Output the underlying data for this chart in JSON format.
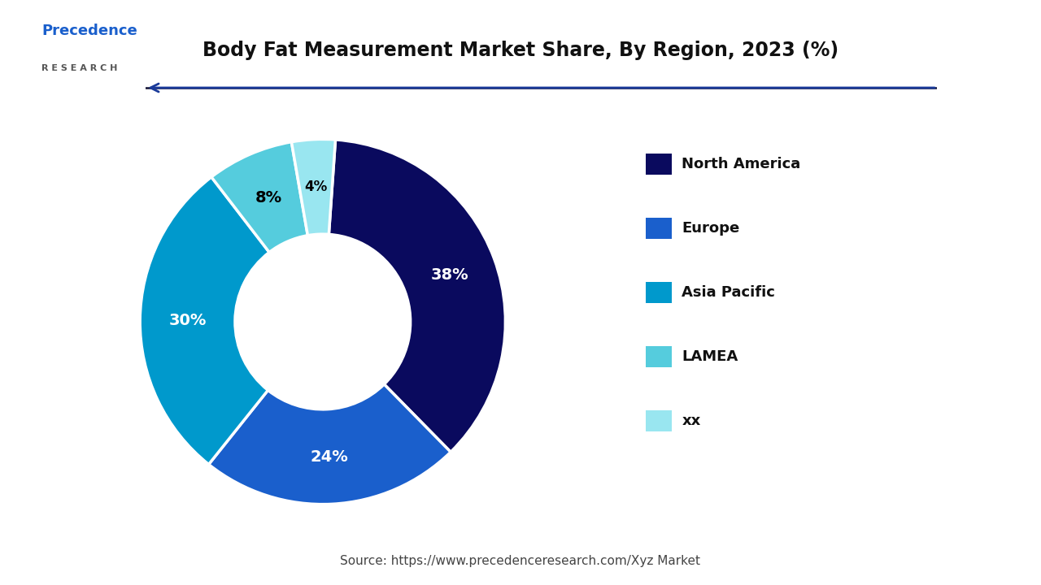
{
  "title": "Body Fat Measurement Market Share, By Region, 2023 (%)",
  "labels": [
    "North America",
    "Europe",
    "Asia Pacific",
    "LAMEA",
    "xx"
  ],
  "values": [
    38,
    24,
    30,
    8,
    4
  ],
  "colors": [
    "#0a0a5e",
    "#1a5fcc",
    "#0099cc",
    "#55ccdd",
    "#99e6f0"
  ],
  "pct_labels": [
    "38%",
    "24%",
    "30%",
    "8%",
    "4%"
  ],
  "pct_colors": [
    "white",
    "white",
    "white",
    "black",
    "black"
  ],
  "source_text": "Source: https://www.precedenceresearch.com/Xyz Market",
  "arrow_color": "#1a3a99",
  "background_color": "#ffffff",
  "start_angle": 86
}
